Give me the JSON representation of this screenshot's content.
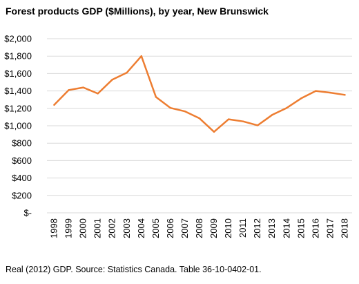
{
  "chart_data": {
    "type": "line",
    "title": "Forest products GDP ($Millions), by year, New Brunswick",
    "xlabel": "",
    "ylabel": "",
    "x": [
      "1998",
      "1999",
      "2000",
      "2001",
      "2002",
      "2003",
      "2004",
      "2005",
      "2006",
      "2007",
      "2008",
      "2009",
      "2010",
      "2011",
      "2012",
      "2013",
      "2014",
      "2015",
      "2016",
      "2017",
      "2018"
    ],
    "series": [
      {
        "values": [
          1240,
          1410,
          1440,
          1370,
          1530,
          1610,
          1800,
          1330,
          1205,
          1165,
          1085,
          930,
          1075,
          1050,
          1005,
          1125,
          1205,
          1315,
          1400,
          1380,
          1355
        ]
      }
    ],
    "yticks": [
      "$-",
      "$200",
      "$400",
      "$600",
      "$800",
      "$1,000",
      "$1,200",
      "$1,400",
      "$1,600",
      "$1,800",
      "$2,000"
    ],
    "ylim": [
      0,
      2000
    ],
    "grid": true,
    "line_color": "#ED7D31",
    "grid_color": "#D9D9D9"
  },
  "footnote": "Real (2012) GDP. Source: Statistics Canada. Table 36-10-0402-01."
}
